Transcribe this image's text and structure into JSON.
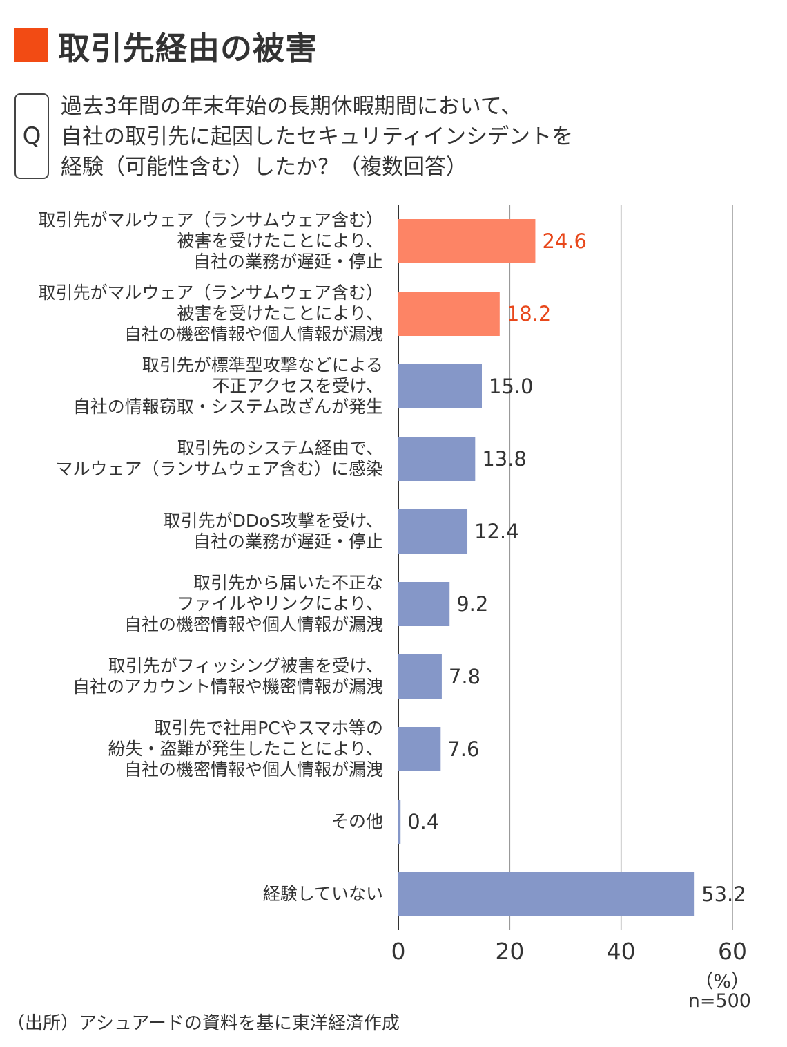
{
  "header": {
    "title": "取引先経由の被害",
    "q_label": "Q",
    "question": "過去3年間の年末年始の長期休暇期間において、\n自社の取引先に起因したセキュリティインシデントを\n経験（可能性含む）したか？（複数回答）"
  },
  "chart_data": {
    "type": "bar",
    "orientation": "horizontal",
    "categories": [
      "取引先がマルウェア（ランサムウェア含む）\n被害を受けたことにより、\n自社の業務が遅延・停止",
      "取引先がマルウェア（ランサムウェア含む）\n被害を受けたことにより、\n自社の機密情報や個人情報が漏洩",
      "取引先が標準型攻撃などによる\n不正アクセスを受け、\n自社の情報窃取・システム改ざんが発生",
      "取引先のシステム経由で、\nマルウェア（ランサムウェア含む）に感染",
      "取引先がDDoS攻撃を受け、\n自社の業務が遅延・停止",
      "取引先から届いた不正な\nファイルやリンクにより、\n自社の機密情報や個人情報が漏洩",
      "取引先がフィッシング被害を受け、\n自社のアカウント情報や機密情報が漏洩",
      "取引先で社用PCやスマホ等の\n紛失・盗難が発生したことにより、\n自社の機密情報や個人情報が漏洩",
      "その他",
      "経験していない"
    ],
    "values": [
      24.6,
      18.2,
      15.0,
      13.8,
      12.4,
      9.2,
      7.8,
      7.6,
      0.4,
      53.2
    ],
    "value_labels": [
      "24.6",
      "18.2",
      "15.0",
      "13.8",
      "12.4",
      "9.2",
      "7.8",
      "7.6",
      "0.4",
      "53.2"
    ],
    "highlight": [
      true,
      true,
      false,
      false,
      false,
      false,
      false,
      false,
      false,
      false
    ],
    "xlim": [
      0,
      60
    ],
    "xticks": [
      "0",
      "20",
      "40",
      "60"
    ],
    "xunit": "（%）",
    "grid": true,
    "colors": {
      "highlight": "#fd8465",
      "highlight_label": "#e8481c",
      "default": "#8597c8",
      "default_label": "#333333"
    }
  },
  "footer": {
    "n": "n=500",
    "source": "（出所）アシュアードの資料を基に東洋経済作成"
  }
}
